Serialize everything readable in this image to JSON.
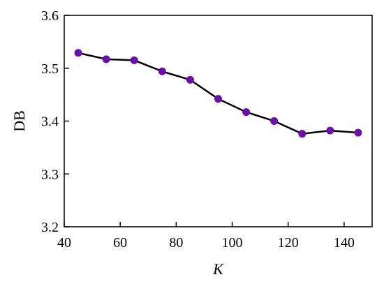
{
  "chart_data": {
    "type": "line",
    "xlabel": "K",
    "ylabel": "DB",
    "xlim": [
      40,
      150
    ],
    "ylim": [
      3.2,
      3.6
    ],
    "x_ticks": [
      40,
      60,
      80,
      100,
      120,
      140
    ],
    "x_tick_labels": [
      "40",
      "60",
      "80",
      "100",
      "120",
      "140"
    ],
    "y_ticks": [
      3.2,
      3.3,
      3.4,
      3.5,
      3.6
    ],
    "y_tick_labels": [
      "3.2",
      "3.3",
      "3.4",
      "3.5",
      "3.6"
    ],
    "grid": false,
    "series": [
      {
        "x": [
          45,
          55,
          65,
          75,
          85,
          95,
          105,
          115,
          125,
          135,
          145
        ],
        "y": [
          3.529,
          3.517,
          3.515,
          3.494,
          3.478,
          3.442,
          3.417,
          3.4,
          3.376,
          3.382,
          3.378
        ],
        "line_color": "#000000",
        "marker_color": "#6a0dad"
      }
    ]
  }
}
